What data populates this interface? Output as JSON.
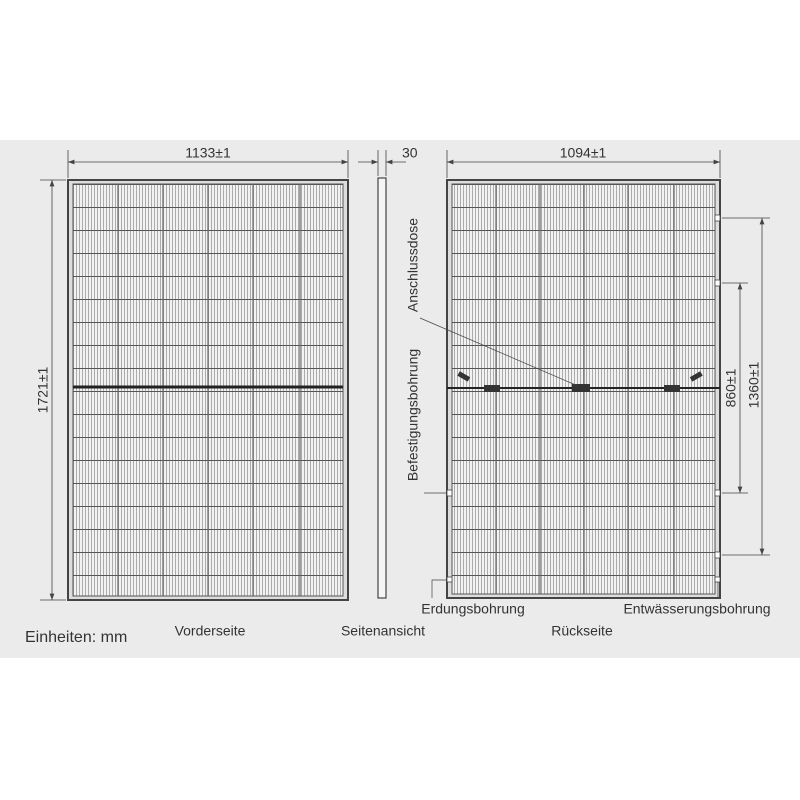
{
  "dimensions": {
    "front_width": "1133±1",
    "side_depth": "30",
    "back_width": "1094±1",
    "height": "1721±1",
    "inner_hole_spacing": "860±1",
    "outer_hole_spacing": "1360±1"
  },
  "callouts": {
    "junction_box": "Anschlussdose",
    "mounting_hole": "Befestigungsbohrung",
    "grounding_hole": "Erdungsbohrung",
    "drain_hole": "Entwässerungsbohrung"
  },
  "views": {
    "front": "Vorderseite",
    "side": "Seitenansicht",
    "back": "Rückseite"
  },
  "units": "Einheiten: mm"
}
